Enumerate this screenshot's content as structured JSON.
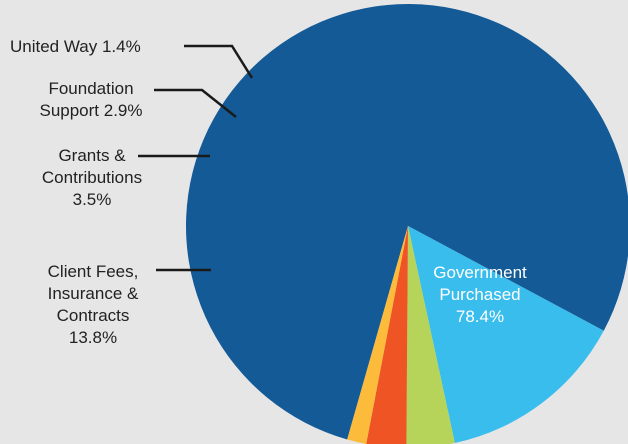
{
  "chart_data": {
    "type": "pie",
    "slices": [
      {
        "label_lines": [
          "Government",
          "Purchased",
          "78.4%"
        ],
        "value": 78.4,
        "color": "#145a96"
      },
      {
        "label_lines": [
          "Client Fees,",
          "Insurance &",
          "Contracts",
          "13.8%"
        ],
        "value": 13.8,
        "color": "#39bdec"
      },
      {
        "label_lines": [
          "Grants &",
          "Contributions",
          "3.5%"
        ],
        "value": 3.5,
        "color": "#b6d45a"
      },
      {
        "label_lines": [
          "Foundation",
          "Support 2.9%"
        ],
        "value": 2.9,
        "color": "#ef5425"
      },
      {
        "label_lines": [
          "United Way 1.4%"
        ],
        "value": 1.4,
        "color": "#fcbb3b"
      }
    ],
    "label_placement": "outside-left-with-leaders",
    "legend": "none"
  },
  "colors": {
    "background": "#e6e6e7",
    "leader_line": "#1a1a1a",
    "inside_label": "#ffffff"
  }
}
